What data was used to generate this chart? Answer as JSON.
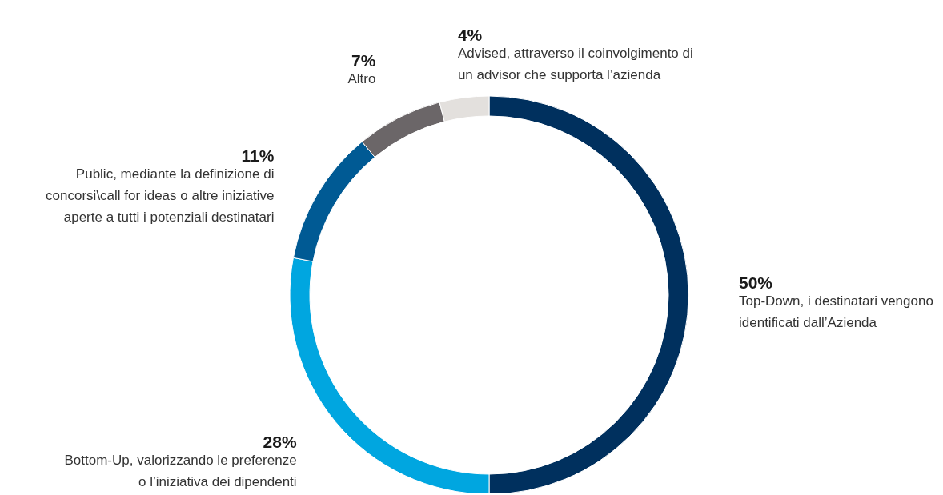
{
  "chart_data": {
    "type": "donut",
    "categories": [
      "Top-Down, i destinatari vengono\nidentificati dall’Azienda",
      "Bottom-Up, valorizzando le preferenze\no l’iniziativa dei dipendenti",
      "Public, mediante la definizione di\nconcorsi\\call for ideas o altre iniziative\naperte a tutti i potenziali destinatari",
      "Altro",
      "Advised, attraverso il coinvolgimento di\nun advisor che supporta l’azienda"
    ],
    "values": [
      50,
      28,
      11,
      7,
      4
    ],
    "colors": [
      "#00305e",
      "#00a6e0",
      "#005a94",
      "#6b6668",
      "#e3e0dd"
    ],
    "value_labels": [
      "50%",
      "28%",
      "11%",
      "7%",
      "4%"
    ]
  }
}
